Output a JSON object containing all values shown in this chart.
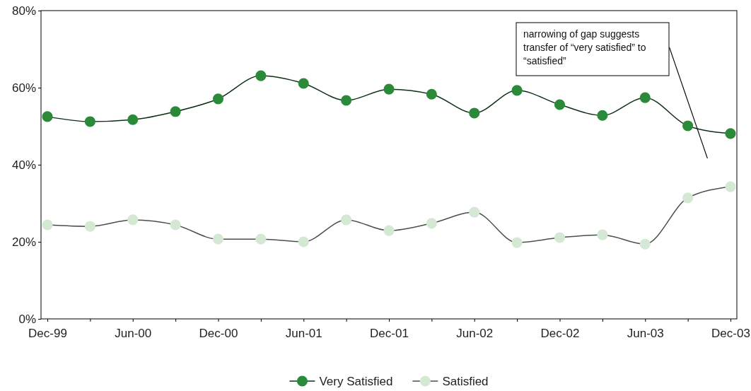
{
  "chart_data": {
    "type": "line",
    "categories": [
      "Dec-99",
      null,
      "Jun-00",
      null,
      "Dec-00",
      null,
      "Jun-01",
      null,
      "Dec-01",
      null,
      "Jun-02",
      null,
      "Dec-02",
      null,
      "Jun-03",
      null,
      "Dec-03"
    ],
    "series": [
      {
        "name": "Very Satisfied",
        "color": "#2a8a3a",
        "values": [
          52.5,
          51.2,
          51.7,
          53.8,
          57.1,
          63.1,
          61.1,
          56.7,
          59.6,
          58.3,
          53.4,
          59.3,
          55.6,
          52.8,
          57.4,
          50.1,
          48.1
        ]
      },
      {
        "name": "Satisfied",
        "color": "#d4e8d4",
        "values": [
          24.4,
          24.0,
          25.7,
          24.4,
          20.7,
          20.7,
          20.0,
          25.7,
          22.9,
          24.8,
          27.7,
          19.8,
          21.1,
          21.8,
          19.4,
          31.4,
          34.3
        ]
      }
    ],
    "ylim": [
      0,
      80
    ],
    "yticks": [
      {
        "value": 0,
        "label": "0%"
      },
      {
        "value": 20,
        "label": "20%"
      },
      {
        "value": 40,
        "label": "40%"
      },
      {
        "value": 60,
        "label": "60%"
      },
      {
        "value": 80,
        "label": "80%"
      }
    ],
    "marker": "circle",
    "line_style": "solid",
    "legend": "bottom",
    "grid": false,
    "annotations": [
      "narrowing of gap suggests transfer of “very satisfied” to “satisfied”"
    ]
  }
}
